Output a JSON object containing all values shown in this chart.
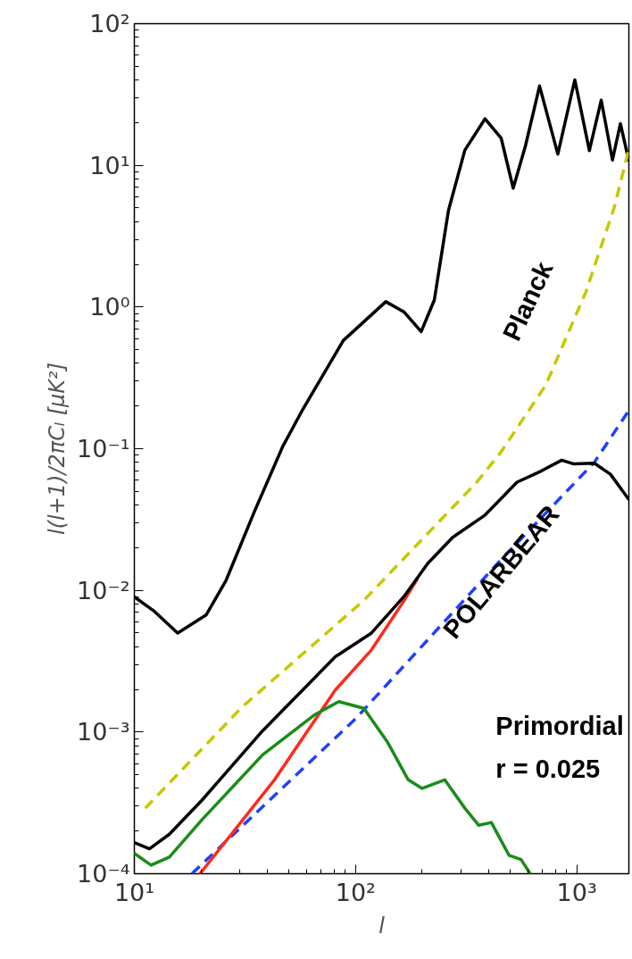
{
  "chart_data": {
    "type": "line",
    "xlabel": "l",
    "ylabel": "l(l+1)/2πCₗ [μK²]",
    "log": "xy",
    "grid": false,
    "marker": "none",
    "xlim": [
      10,
      1720
    ],
    "ylim": [
      0.0001,
      100
    ],
    "xticks": [
      {
        "value": 10,
        "label": "10¹"
      },
      {
        "value": 100,
        "label": "10²"
      },
      {
        "value": 1000,
        "label": "10³"
      }
    ],
    "yticks": [
      {
        "value": 0.0001,
        "label": "10⁻⁴"
      },
      {
        "value": 0.001,
        "label": "10⁻³"
      },
      {
        "value": 0.01,
        "label": "10⁻²"
      },
      {
        "value": 0.1,
        "label": "10⁻¹"
      },
      {
        "value": 1,
        "label": "10⁰"
      },
      {
        "value": 10,
        "label": "10¹"
      },
      {
        "value": 100,
        "label": "10²"
      }
    ],
    "series": [
      {
        "color": "#000000",
        "line_style": "solid",
        "x": [
          10,
          12.2,
          15.7,
          21.1,
          26,
          34.9,
          46.9,
          57.8,
          88,
          137,
          166,
          198,
          227,
          263,
          312,
          385,
          455,
          516,
          586,
          679,
          821,
          980,
          1140,
          1290,
          1450,
          1575,
          1715
        ],
        "values": [
          0.009,
          0.0072,
          0.005,
          0.0067,
          0.0118,
          0.036,
          0.104,
          0.19,
          0.58,
          1.09,
          0.92,
          0.67,
          1.12,
          4.8,
          12.8,
          21.3,
          15.6,
          6.9,
          13.7,
          36.3,
          12.0,
          40.1,
          12.7,
          28.8,
          10.9,
          19.7,
          10.9
        ]
      },
      {
        "name": "Planck",
        "color": "#c8c800",
        "line_style": "dashed",
        "x": [
          11.2,
          30.8,
          109,
          353,
          455,
          723,
          1100,
          1480,
          1715
        ],
        "values": [
          0.00029,
          0.00151,
          0.0085,
          0.058,
          0.095,
          0.28,
          1.28,
          5.1,
          12.8
        ]
      },
      {
        "name": "POLARBEAR",
        "color": "#2040ff",
        "line_style": "dashed",
        "x": [
          18.2,
          100,
          437,
          1200,
          1715
        ],
        "values": [
          0.0001,
          0.00124,
          0.0154,
          0.08,
          0.185
        ]
      },
      {
        "color": "#ff2a1a",
        "line_style": "solid",
        "x": [
          19.8,
          43,
          81,
          118,
          166,
          190
        ],
        "values": [
          0.0001,
          0.00046,
          0.00198,
          0.0038,
          0.0085,
          0.012
        ]
      },
      {
        "name": "Primordial\nr = 0.025",
        "color": "#1a8c1a",
        "line_style": "solid",
        "x": [
          10,
          11.9,
          14.4,
          20.2,
          38,
          65.6,
          84,
          109,
          140,
          173,
          200,
          253,
          312,
          360,
          411,
          494,
          560,
          616
        ],
        "values": [
          0.000139,
          0.000115,
          0.000131,
          0.00024,
          0.00069,
          0.00133,
          0.00164,
          0.00147,
          0.00084,
          0.00046,
          0.0004,
          0.00046,
          0.00029,
          0.00022,
          0.00023,
          0.000135,
          0.000126,
          0.0001
        ]
      },
      {
        "color": "#000000",
        "line_style": "solid",
        "x": [
          10,
          11.7,
          14.4,
          20.2,
          38,
          81,
          118,
          166,
          212,
          275,
          385,
          537,
          690,
          855,
          970,
          1200,
          1420,
          1715
        ],
        "values": [
          0.000166,
          0.00015,
          0.00019,
          0.00033,
          0.00102,
          0.0034,
          0.005,
          0.0091,
          0.0155,
          0.0237,
          0.034,
          0.058,
          0.0695,
          0.083,
          0.078,
          0.079,
          0.066,
          0.044
        ]
      }
    ]
  }
}
